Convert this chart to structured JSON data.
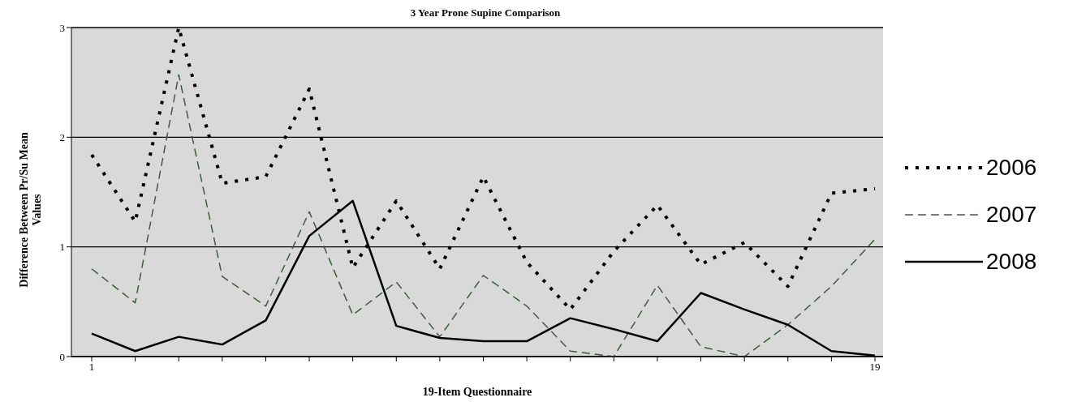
{
  "chart_data": {
    "type": "line",
    "title": "3 Year Prone Supine Comparison",
    "xlabel": "19-Item Questionnaire",
    "ylabel": "Difference Between Pr/Su Mean Values",
    "categories": [
      "1",
      null,
      null,
      null,
      null,
      null,
      null,
      null,
      null,
      null,
      null,
      null,
      null,
      null,
      null,
      null,
      null,
      null,
      "19"
    ],
    "series": [
      {
        "name": "2006",
        "color": "#000000",
        "line_style": "dotted",
        "values": [
          1.84,
          1.23,
          3.0,
          1.58,
          1.64,
          2.44,
          0.81,
          1.42,
          0.8,
          1.64,
          0.86,
          0.43,
          0.96,
          1.38,
          0.84,
          1.04,
          0.64,
          1.49,
          1.53
        ]
      },
      {
        "name": "2007",
        "color": "#3d5c3d",
        "line_style": "dashed",
        "values": [
          0.8,
          0.49,
          2.57,
          0.73,
          0.46,
          1.32,
          0.38,
          0.68,
          0.18,
          0.74,
          0.46,
          0.05,
          0,
          0.65,
          0.09,
          0,
          0.29,
          0.64,
          1.07
        ]
      },
      {
        "name": "2008",
        "color": "#000000",
        "line_style": "solid",
        "values": [
          0.21,
          0.05,
          0.18,
          0.11,
          0.33,
          1.1,
          1.42,
          0.28,
          0.17,
          0.14,
          0.14,
          0.35,
          0.25,
          0.14,
          0.58,
          0.43,
          0.29,
          0.05,
          0.01
        ]
      }
    ],
    "ylim": [
      0,
      3
    ],
    "yticks": [
      0,
      1,
      2,
      3
    ],
    "grid": "y",
    "legend": "right",
    "marker": "none"
  }
}
